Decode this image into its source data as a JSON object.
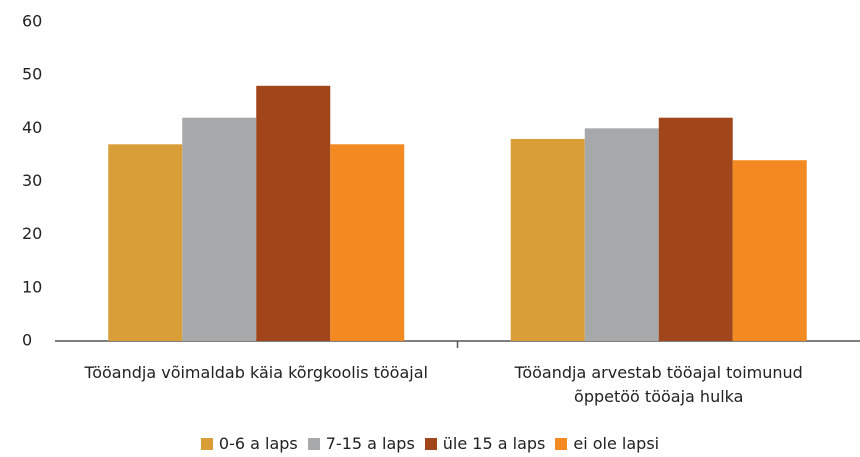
{
  "chart_data": {
    "type": "bar",
    "categories": [
      "Tööandja võimaldab käia kõrgkoolis tööajal",
      "Tööandja arvestab tööajal toimunud\nõppetöö tööaja hulka"
    ],
    "series": [
      {
        "name": "0-6 a laps",
        "color": "#d99e38",
        "values": [
          37,
          38
        ]
      },
      {
        "name": "7-15 a laps",
        "color": "#a7a8aa",
        "values": [
          42,
          40
        ]
      },
      {
        "name": "üle 15 a laps",
        "color": "#a0461a",
        "values": [
          48,
          42
        ]
      },
      {
        "name": "ei ole lapsi",
        "color": "#f28a21",
        "values": [
          37,
          34
        ]
      }
    ],
    "ylim": [
      0,
      60
    ],
    "yticks": [
      0,
      10,
      20,
      30,
      40,
      50,
      60
    ],
    "legend": "bottom"
  }
}
